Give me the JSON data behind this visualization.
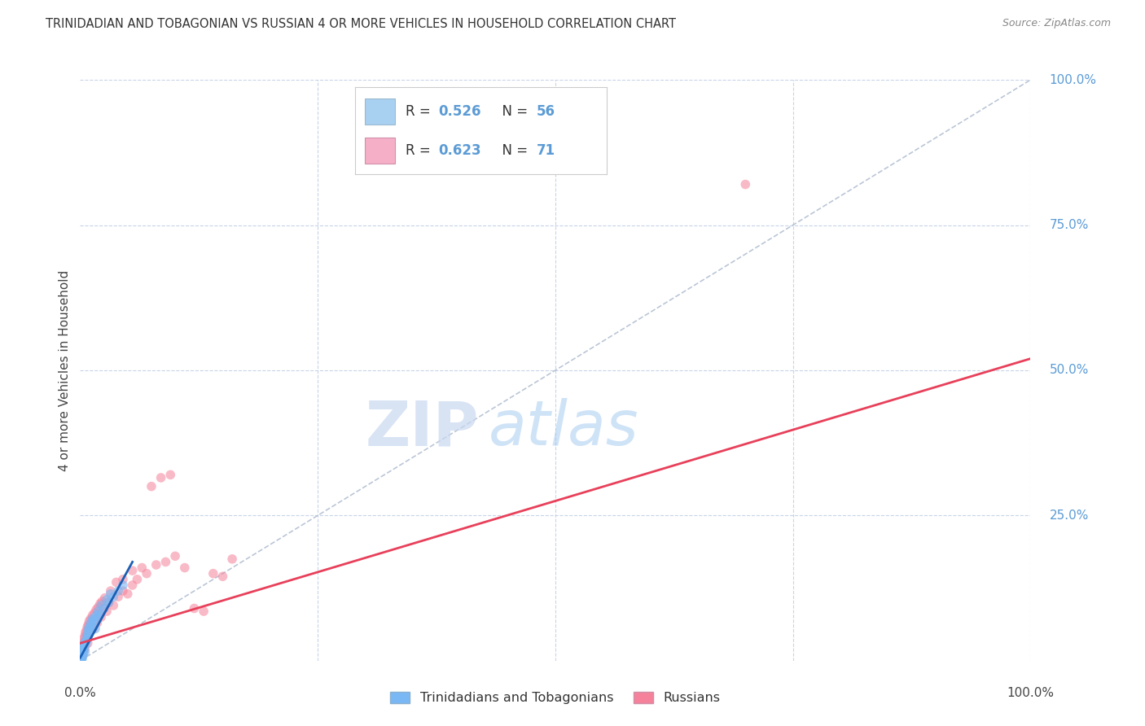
{
  "title": "TRINIDADIAN AND TOBAGONIAN VS RUSSIAN 4 OR MORE VEHICLES IN HOUSEHOLD CORRELATION CHART",
  "source": "Source: ZipAtlas.com",
  "ylabel": "4 or more Vehicles in Household",
  "xlim": [
    0,
    100
  ],
  "ylim": [
    0,
    100
  ],
  "watermark_zip": "ZIP",
  "watermark_atlas": "atlas",
  "background_color": "#ffffff",
  "grid_color": "#c8d4e8",
  "trinidadian_color": "#7ab8f5",
  "russian_color": "#f5829a",
  "trendline_tri_color": "#1a5fb4",
  "trendline_rus_color": "#e8405a",
  "diagonal_color": "#aab8cc",
  "right_axis_color": "#5b9bd5",
  "legend_R_color": "#5b9bd5",
  "legend_N_color": "#5b9bd5",
  "legend_box1_color": "#a8d0f0",
  "legend_box2_color": "#f5b0c8",
  "tri_scatter": [
    [
      0.05,
      0.1
    ],
    [
      0.08,
      0.3
    ],
    [
      0.1,
      0.5
    ],
    [
      0.12,
      0.2
    ],
    [
      0.15,
      0.8
    ],
    [
      0.18,
      1.5
    ],
    [
      0.2,
      0.4
    ],
    [
      0.22,
      1.0
    ],
    [
      0.25,
      0.6
    ],
    [
      0.28,
      1.2
    ],
    [
      0.3,
      2.5
    ],
    [
      0.35,
      1.8
    ],
    [
      0.4,
      2.0
    ],
    [
      0.45,
      3.0
    ],
    [
      0.5,
      1.5
    ],
    [
      0.6,
      2.8
    ],
    [
      0.7,
      3.5
    ],
    [
      0.8,
      4.0
    ],
    [
      0.9,
      5.5
    ],
    [
      1.0,
      5.0
    ],
    [
      1.2,
      6.0
    ],
    [
      1.4,
      7.0
    ],
    [
      1.6,
      5.5
    ],
    [
      1.8,
      7.5
    ],
    [
      2.0,
      8.0
    ],
    [
      2.5,
      9.0
    ],
    [
      3.0,
      10.0
    ],
    [
      3.5,
      11.0
    ],
    [
      4.0,
      12.0
    ],
    [
      4.5,
      13.0
    ],
    [
      0.03,
      0.05
    ],
    [
      0.06,
      0.15
    ],
    [
      0.09,
      0.4
    ],
    [
      0.11,
      0.7
    ],
    [
      0.13,
      0.3
    ],
    [
      0.16,
      1.0
    ],
    [
      0.19,
      0.9
    ],
    [
      0.23,
      1.3
    ],
    [
      0.27,
      1.6
    ],
    [
      0.33,
      2.2
    ],
    [
      0.38,
      2.5
    ],
    [
      0.42,
      2.8
    ],
    [
      0.55,
      3.2
    ],
    [
      0.65,
      3.8
    ],
    [
      0.75,
      4.5
    ],
    [
      0.85,
      5.0
    ],
    [
      0.95,
      5.8
    ],
    [
      1.1,
      6.5
    ],
    [
      1.3,
      7.2
    ],
    [
      1.5,
      6.8
    ],
    [
      1.7,
      7.8
    ],
    [
      1.9,
      8.5
    ],
    [
      2.2,
      9.5
    ],
    [
      2.8,
      10.5
    ],
    [
      3.2,
      11.5
    ],
    [
      0.04,
      0.08
    ]
  ],
  "rus_scatter": [
    [
      0.05,
      0.2
    ],
    [
      0.1,
      0.5
    ],
    [
      0.15,
      1.0
    ],
    [
      0.2,
      0.8
    ],
    [
      0.25,
      1.5
    ],
    [
      0.3,
      2.0
    ],
    [
      0.35,
      1.2
    ],
    [
      0.4,
      2.5
    ],
    [
      0.45,
      3.0
    ],
    [
      0.5,
      2.0
    ],
    [
      0.6,
      3.5
    ],
    [
      0.7,
      4.0
    ],
    [
      0.8,
      3.0
    ],
    [
      0.9,
      4.5
    ],
    [
      1.0,
      5.0
    ],
    [
      1.2,
      6.0
    ],
    [
      1.4,
      5.5
    ],
    [
      1.6,
      7.0
    ],
    [
      1.8,
      6.5
    ],
    [
      2.0,
      8.0
    ],
    [
      2.2,
      7.5
    ],
    [
      2.5,
      9.0
    ],
    [
      2.8,
      8.5
    ],
    [
      3.0,
      10.0
    ],
    [
      3.5,
      9.5
    ],
    [
      4.0,
      11.0
    ],
    [
      4.5,
      12.0
    ],
    [
      5.0,
      11.5
    ],
    [
      5.5,
      13.0
    ],
    [
      6.0,
      14.0
    ],
    [
      7.0,
      15.0
    ],
    [
      8.0,
      16.5
    ],
    [
      9.0,
      17.0
    ],
    [
      10.0,
      18.0
    ],
    [
      11.0,
      16.0
    ],
    [
      12.0,
      9.0
    ],
    [
      13.0,
      8.5
    ],
    [
      14.0,
      15.0
    ],
    [
      15.0,
      14.5
    ],
    [
      16.0,
      17.5
    ],
    [
      0.08,
      0.3
    ],
    [
      0.12,
      0.7
    ],
    [
      0.18,
      1.3
    ],
    [
      0.22,
      1.8
    ],
    [
      0.28,
      2.2
    ],
    [
      0.32,
      2.8
    ],
    [
      0.38,
      3.2
    ],
    [
      0.42,
      3.8
    ],
    [
      0.48,
      4.2
    ],
    [
      0.55,
      4.8
    ],
    [
      0.65,
      5.2
    ],
    [
      0.75,
      5.8
    ],
    [
      0.85,
      6.2
    ],
    [
      0.95,
      6.8
    ],
    [
      1.1,
      7.2
    ],
    [
      1.3,
      7.8
    ],
    [
      1.5,
      8.2
    ],
    [
      1.7,
      8.8
    ],
    [
      1.9,
      9.2
    ],
    [
      2.1,
      9.8
    ],
    [
      2.3,
      10.2
    ],
    [
      2.6,
      10.8
    ],
    [
      3.2,
      12.0
    ],
    [
      3.8,
      13.5
    ],
    [
      4.5,
      14.0
    ],
    [
      5.5,
      15.5
    ],
    [
      6.5,
      16.0
    ],
    [
      7.5,
      30.0
    ],
    [
      8.5,
      31.5
    ],
    [
      9.5,
      32.0
    ],
    [
      70.0,
      82.0
    ]
  ],
  "tri_trendline_x": [
    0,
    5.5
  ],
  "tri_trendline_y": [
    0.5,
    17.0
  ],
  "rus_trendline_x": [
    0,
    100
  ],
  "rus_trendline_y": [
    3.0,
    52.0
  ]
}
